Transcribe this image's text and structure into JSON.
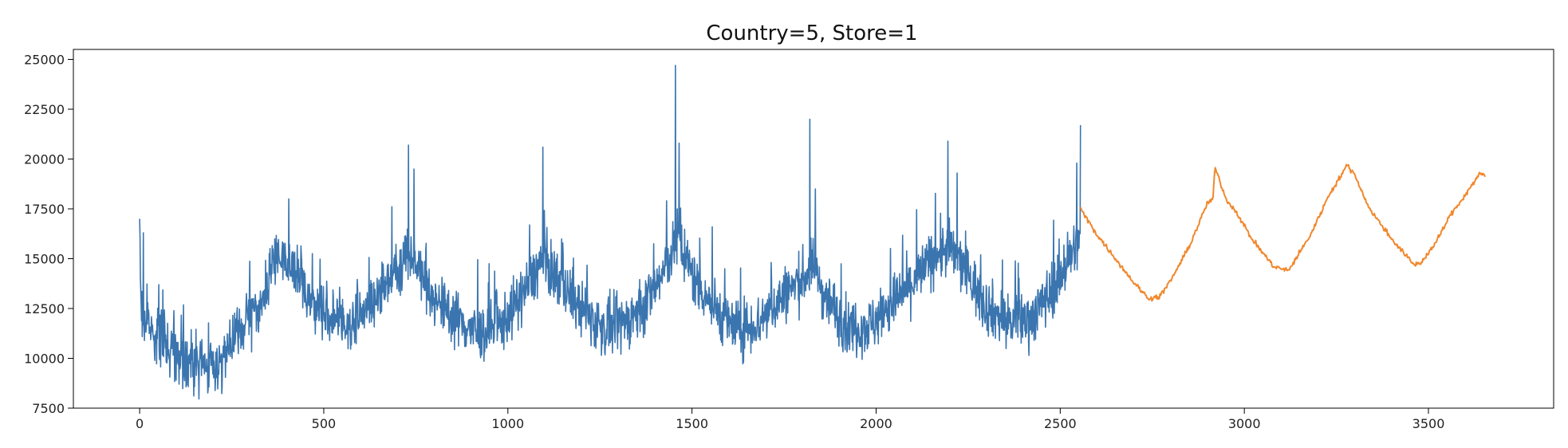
{
  "chart_data": {
    "type": "line",
    "title": "Country=5, Store=1",
    "xlabel": "",
    "ylabel": "",
    "xlim": [
      -180,
      3840
    ],
    "ylim": [
      7500,
      25500
    ],
    "xticks": [
      0,
      500,
      1000,
      1500,
      2000,
      2500,
      3000,
      3500
    ],
    "yticks": [
      7500,
      10000,
      12500,
      15000,
      17500,
      20000,
      22500,
      25000
    ],
    "grid": false,
    "legend": "none",
    "series": [
      {
        "color": "#3b75af",
        "style": "noisy",
        "x": [
          0,
          5,
          20,
          60,
          100,
          150,
          200,
          260,
          300,
          340,
          365,
          380,
          420,
          460,
          520,
          580,
          640,
          700,
          730,
          760,
          800,
          860,
          920,
          980,
          1040,
          1090,
          1130,
          1200,
          1260,
          1300,
          1360,
          1420,
          1460,
          1500,
          1560,
          1620,
          1680,
          1740,
          1800,
          1830,
          1860,
          1920,
          1980,
          2040,
          2100,
          2160,
          2200,
          2240,
          2300,
          2360,
          2420,
          2480,
          2530,
          2555
        ],
        "y": [
          16500,
          12000,
          11800,
          11000,
          10300,
          9700,
          9600,
          10800,
          12200,
          13000,
          14800,
          15200,
          14500,
          13000,
          12000,
          11800,
          13000,
          14700,
          15200,
          14600,
          13000,
          12000,
          11200,
          11600,
          13200,
          14800,
          14200,
          12400,
          11500,
          11600,
          12400,
          14200,
          16000,
          14200,
          12600,
          11400,
          11800,
          13000,
          14000,
          14600,
          13200,
          11600,
          11600,
          12700,
          13800,
          15200,
          15500,
          14500,
          12600,
          11800,
          12000,
          13500,
          15200,
          16000
        ],
        "spikes": [
          [
            0,
            17000
          ],
          [
            10,
            16300
          ],
          [
            405,
            18000
          ],
          [
            730,
            20700
          ],
          [
            745,
            19500
          ],
          [
            1095,
            20600
          ],
          [
            1455,
            24700
          ],
          [
            1465,
            20800
          ],
          [
            1820,
            22000
          ],
          [
            1835,
            18500
          ],
          [
            2195,
            20900
          ],
          [
            2220,
            19300
          ],
          [
            2555,
            21700
          ],
          [
            2545,
            19800
          ]
        ]
      },
      {
        "color": "#f0882e",
        "style": "smooth",
        "x": [
          2555,
          2600,
          2650,
          2700,
          2740,
          2770,
          2800,
          2850,
          2900,
          2915,
          2920,
          2950,
          2980,
          3020,
          3080,
          3120,
          3180,
          3230,
          3280,
          3300,
          3340,
          3400,
          3460,
          3480,
          3520,
          3560,
          3600,
          3640,
          3655
        ],
        "y": [
          17500,
          16200,
          15000,
          13800,
          13000,
          13100,
          13900,
          15600,
          17800,
          18000,
          19600,
          18000,
          17300,
          16000,
          14600,
          14400,
          16200,
          18200,
          19700,
          19200,
          17500,
          16000,
          14700,
          14800,
          15800,
          17200,
          18200,
          19300,
          19100
        ]
      }
    ]
  }
}
